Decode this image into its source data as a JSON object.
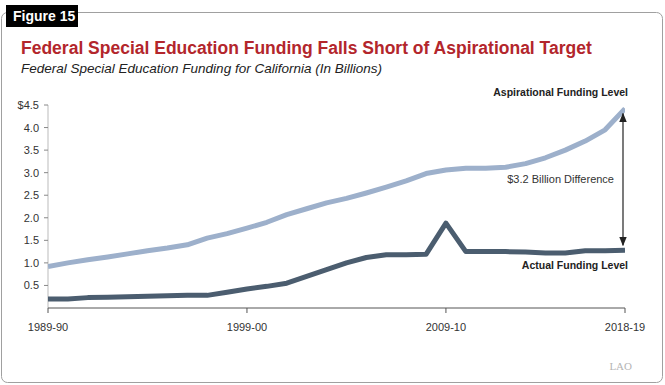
{
  "chart_data": {
    "type": "line",
    "figure_label": "Figure 15",
    "title": "Federal Special Education Funding Falls Short of Aspirational Target",
    "subtitle": "Federal Special Education Funding for California (In Billions)",
    "x": [
      1989,
      1990,
      1991,
      1992,
      1993,
      1994,
      1995,
      1996,
      1997,
      1998,
      1999,
      2000,
      2001,
      2002,
      2003,
      2004,
      2005,
      2006,
      2007,
      2008,
      2009,
      2010,
      2011,
      2012,
      2013,
      2014,
      2015,
      2016,
      2017,
      2018
    ],
    "xlim": [
      1989,
      2018
    ],
    "xticks": [
      {
        "value": 1989,
        "label": "1989-90"
      },
      {
        "value": 1999,
        "label": "1999-00"
      },
      {
        "value": 2009,
        "label": "2009-10"
      },
      {
        "value": 2018,
        "label": "2018-19"
      }
    ],
    "ylim": [
      0,
      4.5
    ],
    "yticks": [
      0.5,
      {
        "value": 1,
        "label": "1.0"
      },
      1.5,
      {
        "value": 2,
        "label": "2.0"
      },
      2.5,
      {
        "value": 3,
        "label": "3.0"
      },
      3.5,
      {
        "value": 4,
        "label": "4.0"
      },
      {
        "value": 4.5,
        "label": "$4.5"
      }
    ],
    "grid": false,
    "series": [
      {
        "name": "Aspirational Funding Level",
        "color": "#9db0cb",
        "values": [
          0.92,
          1.0,
          1.07,
          1.13,
          1.2,
          1.27,
          1.33,
          1.4,
          1.55,
          1.65,
          1.77,
          1.9,
          2.07,
          2.2,
          2.33,
          2.43,
          2.55,
          2.68,
          2.82,
          2.98,
          3.06,
          3.1,
          3.1,
          3.12,
          3.2,
          3.33,
          3.5,
          3.7,
          3.95,
          4.42
        ]
      },
      {
        "name": "Actual Funding Level",
        "color": "#4b5d6f",
        "values": [
          0.2,
          0.2,
          0.23,
          0.24,
          0.25,
          0.26,
          0.27,
          0.28,
          0.28,
          0.35,
          0.42,
          0.48,
          0.55,
          0.7,
          0.85,
          1.0,
          1.12,
          1.18,
          1.18,
          1.19,
          1.88,
          1.25,
          1.25,
          1.25,
          1.24,
          1.22,
          1.22,
          1.27,
          1.27,
          1.28
        ]
      }
    ],
    "annotation": "$3.2 Billion Difference",
    "source": "LAO"
  }
}
